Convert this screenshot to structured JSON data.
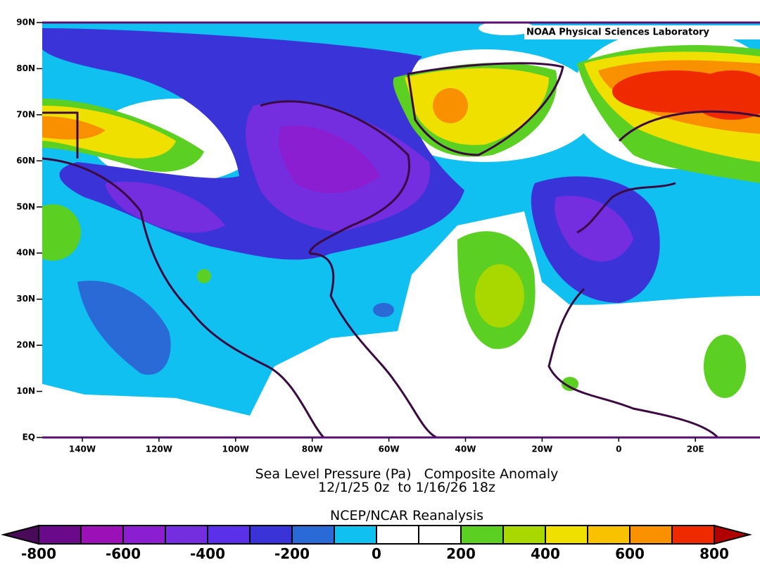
{
  "map": {
    "credit": "NOAA Physical Sciences Laboratory",
    "lat_labels": [
      "90N",
      "80N",
      "70N",
      "60N",
      "50N",
      "40N",
      "30N",
      "20N",
      "10N",
      "EQ"
    ],
    "lon_labels": [
      "140W",
      "120W",
      "100W",
      "80W",
      "60W",
      "40W",
      "20W",
      "0",
      "20E"
    ]
  },
  "caption": {
    "line1": "Sea Level Pressure (Pa)   Composite Anomaly",
    "line2": "12/1/25 0z  to 1/16/26 18z",
    "line3": "NCEP/NCAR Reanalysis"
  },
  "colorbar": {
    "labels": [
      -800,
      -600,
      -400,
      -200,
      0,
      200,
      400,
      600,
      800
    ],
    "colors": [
      "#6a0a8a",
      "#9c10b8",
      "#8a1ed0",
      "#742ee0",
      "#5a30e8",
      "#3a34d8",
      "#2a6ad6",
      "#10c0f0",
      "#ffffff",
      "#ffffff",
      "#5cd022",
      "#a8d800",
      "#f0e000",
      "#f8c200",
      "#f89000",
      "#f02a00"
    ],
    "under_color": "#4a0a5a",
    "over_color": "#b00000"
  }
}
